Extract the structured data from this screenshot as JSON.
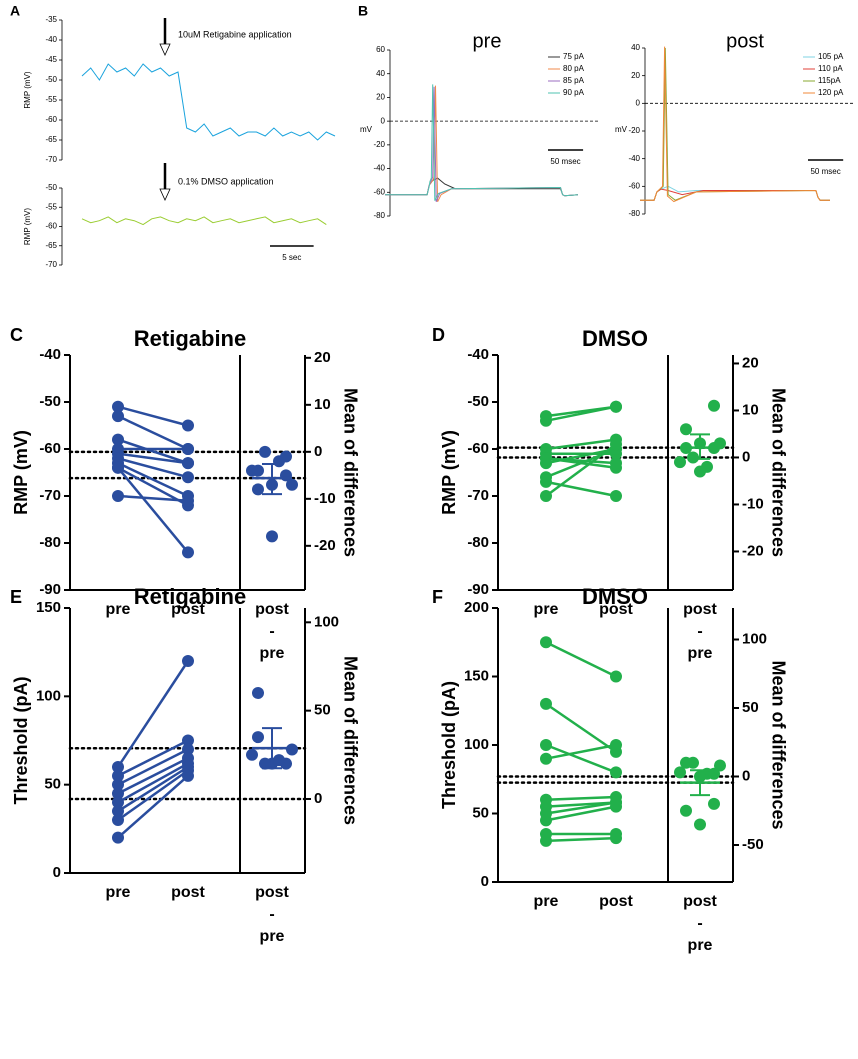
{
  "chart_data": [
    {
      "label": "A",
      "type": "trace",
      "scale_bar": {
        "value": 5,
        "label": "5 sec"
      },
      "xlim": [
        0,
        29
      ],
      "panels": [
        {
          "ylabel": "RMP (mV)",
          "annotation": "10uM Retigabine application",
          "ylim": [
            -70,
            -35
          ],
          "yticks": [
            -35,
            -40,
            -45,
            -50,
            -55,
            -60,
            -65,
            -70
          ],
          "color": "#1aa3dd",
          "x": [
            0,
            1,
            2,
            3,
            4,
            5,
            6,
            7,
            8,
            9,
            10,
            11,
            12,
            13,
            14,
            15,
            16,
            17,
            18,
            19,
            20,
            21,
            22,
            23,
            24,
            25,
            26,
            27,
            28,
            29
          ],
          "values": [
            -49,
            -47,
            -50,
            -46,
            -48,
            -47,
            -49,
            -46,
            -48,
            -47,
            -49,
            -48,
            -62,
            -63,
            -61,
            -64,
            -63,
            -62,
            -64,
            -63,
            -63,
            -64,
            -62,
            -64,
            -63,
            -64,
            -63,
            -65,
            -63,
            -64
          ]
        },
        {
          "ylabel": "RMP (mV)",
          "annotation": "0.1% DMSO application",
          "ylim": [
            -70,
            -50
          ],
          "yticks": [
            -50,
            -55,
            -60,
            -65,
            -70
          ],
          "color": "#9acd32",
          "x": [
            0,
            1,
            2,
            3,
            4,
            5,
            6,
            7,
            8,
            9,
            10,
            11,
            12,
            13,
            14,
            15,
            16,
            17,
            18,
            19,
            20,
            21,
            22,
            23,
            24,
            25,
            26,
            27,
            28
          ],
          "values": [
            -58,
            -59,
            -58.5,
            -57.5,
            -59,
            -58,
            -58.5,
            -59.5,
            -58,
            -57.5,
            -58.5,
            -59,
            -58,
            -58.5,
            -57.5,
            -59,
            -58.5,
            -58,
            -59,
            -58.5,
            -58,
            -57.5,
            -59,
            -58.5,
            -58,
            -59,
            -58.5,
            -58,
            -59.5
          ]
        }
      ]
    },
    {
      "label": "B",
      "type": "trace",
      "panels": [
        {
          "title": "pre",
          "ylabel": "mV",
          "ylim": [
            -80,
            60
          ],
          "yticks": [
            60,
            40,
            20,
            0,
            -20,
            -40,
            -60,
            -80
          ],
          "xlim": [
            0,
            275
          ],
          "reference_line": 0,
          "scale_bar": {
            "value": 50,
            "label": "50 msec"
          },
          "series": [
            {
              "name": "75 pA",
              "color": "#333333",
              "x": [
                0,
                60,
                63,
                68,
                75,
                85,
                100,
                250,
                253,
                256,
                275
              ],
              "values": [
                -62,
                -62,
                -54,
                -50,
                -48,
                -53,
                -57,
                -57,
                -62,
                -63,
                -62
              ]
            },
            {
              "name": "80 pA",
              "color": "#f08a4b",
              "x": [
                0,
                60,
                63,
                68,
                70,
                72,
                75,
                80,
                95,
                250,
                253,
                256,
                275
              ],
              "values": [
                -62,
                -62,
                -54,
                -50,
                -47,
                30,
                -68,
                -62,
                -57,
                -56,
                -62,
                -63,
                -62
              ]
            },
            {
              "name": "85 pA",
              "color": "#9b6cc0",
              "x": [
                0,
                60,
                63,
                66,
                68,
                70,
                73,
                78,
                95,
                250,
                253,
                256,
                275
              ],
              "values": [
                -62,
                -62,
                -54,
                -50,
                -47,
                29,
                -68,
                -61,
                -57,
                -56,
                -62,
                -63,
                -62
              ]
            },
            {
              "name": "90 pA",
              "color": "#4fc3b0",
              "x": [
                0,
                60,
                63,
                64,
                66,
                68,
                71,
                76,
                95,
                250,
                253,
                256,
                275
              ],
              "values": [
                -62,
                -62,
                -55,
                -51,
                -48,
                31,
                -67,
                -61,
                -57,
                -56,
                -62,
                -63,
                -62
              ]
            }
          ]
        },
        {
          "title": "post",
          "ylabel": "mV",
          "ylim": [
            -80,
            40
          ],
          "yticks": [
            40,
            20,
            0,
            -20,
            -40,
            -60,
            -80
          ],
          "xlim": [
            0,
            270
          ],
          "reference_line": 0,
          "scale_bar": {
            "value": 50,
            "label": "50 msec"
          },
          "series": [
            {
              "name": "105 pA",
              "color": "#7fd3e3",
              "x": [
                0,
                20,
                24,
                30,
                40,
                55,
                80,
                250,
                253,
                256,
                270
              ],
              "values": [
                -70,
                -70,
                -64,
                -62,
                -60,
                -64,
                -63,
                -63,
                -68,
                -70,
                -70
              ]
            },
            {
              "name": "110 pA",
              "color": "#e0403a",
              "x": [
                0,
                20,
                24,
                30,
                40,
                60,
                90,
                250,
                253,
                256,
                270
              ],
              "values": [
                -70,
                -70,
                -64,
                -62,
                -63,
                -66,
                -63,
                -63,
                -68,
                -70,
                -70
              ]
            },
            {
              "name": "115pA",
              "color": "#8aa832",
              "x": [
                0,
                20,
                24,
                33,
                36,
                40,
                50,
                80,
                250,
                253,
                256,
                270
              ],
              "values": [
                -70,
                -70,
                -64,
                -60,
                40,
                -66,
                -70,
                -64,
                -63,
                -68,
                -70,
                -70
              ]
            },
            {
              "name": "120 pA",
              "color": "#f0883a",
              "x": [
                0,
                20,
                24,
                32,
                35,
                39,
                48,
                80,
                250,
                253,
                256,
                270
              ],
              "values": [
                -70,
                -70,
                -64,
                -60,
                41,
                -67,
                -71,
                -64,
                -63,
                -68,
                -70,
                -70
              ]
            }
          ]
        }
      ]
    },
    {
      "label": "C",
      "type": "estimation",
      "title": "Retigabine",
      "ylabel": "RMP (mV)",
      "y2label": "Mean of differences",
      "color": "#2a4d9e",
      "categories": [
        "pre",
        "post",
        "post\n-\npre"
      ],
      "pre": [
        -51,
        -53,
        -58,
        -60,
        -61,
        -62,
        -63,
        -64,
        -64,
        -70
      ],
      "post": [
        -55,
        -60,
        -63,
        -60,
        -63,
        -66,
        -70,
        -72,
        -82,
        -71
      ],
      "differences": [
        -4,
        -7,
        -5,
        0,
        -2,
        -4,
        -7,
        -8,
        -18,
        -1
      ],
      "mean_difference": -5.6,
      "ci": [
        -9,
        -2.6
      ],
      "reference_lines": [
        -60.6,
        -66.2
      ],
      "ylim": [
        -90,
        -40
      ],
      "yticks": [
        -40,
        -50,
        -60,
        -70,
        -80,
        -90
      ],
      "y2lim": [
        -29.4,
        20.6
      ],
      "y2ticks": [
        20,
        10,
        0,
        -10,
        -20
      ]
    },
    {
      "label": "D",
      "type": "estimation",
      "title": "DMSO",
      "ylabel": "RMP (mV)",
      "y2label": "Mean of differences",
      "color": "#22b04b",
      "categories": [
        "pre",
        "post",
        "post\n-\npre"
      ],
      "pre": [
        -53,
        -54,
        -60,
        -61,
        -62,
        -62,
        -63,
        -66,
        -67,
        -70
      ],
      "post": [
        -51,
        -51,
        -58,
        -61,
        -64,
        -63,
        -60,
        -60,
        -70,
        -59
      ],
      "differences": [
        2,
        3,
        2,
        0,
        -2,
        -1,
        3,
        6,
        -3,
        11
      ],
      "mean_difference": 2.1,
      "ci": [
        -0.3,
        4.9
      ],
      "reference_lines": [
        -61.8,
        -59.7
      ],
      "ylim": [
        -90,
        -40
      ],
      "yticks": [
        -40,
        -50,
        -60,
        -70,
        -80,
        -90
      ],
      "y2lim": [
        -28.2,
        21.8
      ],
      "y2ticks": [
        20,
        10,
        0,
        -10,
        -20
      ]
    },
    {
      "label": "E",
      "type": "estimation",
      "title": "Retigabine",
      "ylabel": "Threshold (pA)",
      "y2label": "Mean of differences",
      "color": "#2a4d9e",
      "categories": [
        "pre",
        "post",
        "post\n-\npre"
      ],
      "pre": [
        60,
        55,
        50,
        45,
        40,
        35,
        30,
        20
      ],
      "post": [
        120,
        75,
        70,
        65,
        62,
        60,
        58,
        55
      ],
      "differences": [
        60,
        20,
        20,
        20,
        22,
        25,
        28,
        35
      ],
      "mean_difference": 28.75,
      "ci": [
        17.4,
        40.1
      ],
      "reference_lines": [
        41.9,
        70.6
      ],
      "ylim": [
        0,
        150
      ],
      "yticks": [
        0,
        50,
        100,
        150
      ],
      "y2lim": [
        -41.9,
        108.1
      ],
      "y2ticks": [
        0,
        50,
        100
      ]
    },
    {
      "label": "F",
      "type": "estimation",
      "title": "DMSO",
      "ylabel": "Threshold (pA)",
      "y2label": "Mean of differences",
      "color": "#22b04b",
      "categories": [
        "pre",
        "post",
        "post\n-\npre"
      ],
      "pre": [
        175,
        130,
        100,
        90,
        60,
        55,
        50,
        45,
        35,
        30
      ],
      "post": [
        150,
        95,
        80,
        100,
        62,
        58,
        58,
        55,
        35,
        32
      ],
      "differences": [
        -25,
        -35,
        -20,
        10,
        2,
        3,
        8,
        10,
        0,
        2
      ],
      "mean_difference": -4.5,
      "ci": [
        -13.6,
        4.6
      ],
      "reference_lines": [
        77,
        72.5
      ],
      "ylim": [
        0,
        200
      ],
      "yticks": [
        0,
        50,
        100,
        150,
        200
      ],
      "y2lim": [
        -77,
        123
      ],
      "y2ticks": [
        -50,
        0,
        50,
        100
      ]
    }
  ]
}
